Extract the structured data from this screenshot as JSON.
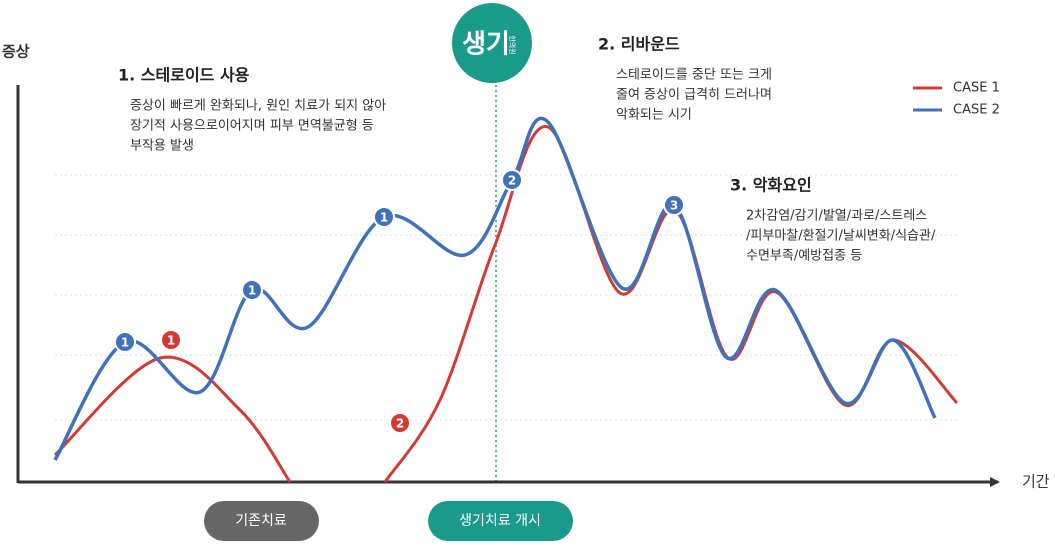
{
  "y_axis_label": "증상",
  "x_axis_label": "기간",
  "logo": {
    "name": "생기",
    "sub": "한의원"
  },
  "annotations": [
    {
      "title": "1. 스테로이드 사용",
      "lines": [
        "증상이 빠르게 완화되나, 원인 치료가 되지 않아",
        "장기적 사용으로이어지며 피부 면역불균형 등",
        "부작용 발생"
      ]
    },
    {
      "title": "2. 리바운드",
      "lines": [
        "스테로이드를 중단 또는 크게",
        "줄여 증상이 급격히 드러나며",
        "악화되는 시기"
      ]
    },
    {
      "title": "3. 악화요인",
      "lines": [
        "2차감염/감기/발열/과로/스트레스",
        "/피부마찰/환절기/날씨변화/식습관/",
        "수면부족/예방접종 등"
      ]
    }
  ],
  "legend": [
    {
      "label": "CASE 1"
    },
    {
      "label": "CASE 2"
    }
  ],
  "markers": [
    {
      "label": "1"
    },
    {
      "label": "1"
    },
    {
      "label": "1"
    },
    {
      "label": "2"
    },
    {
      "label": "3"
    },
    {
      "label": "1"
    },
    {
      "label": "2"
    }
  ],
  "buttons": [
    {
      "label": "기존치료"
    },
    {
      "label": "생기치료 개시"
    }
  ]
}
